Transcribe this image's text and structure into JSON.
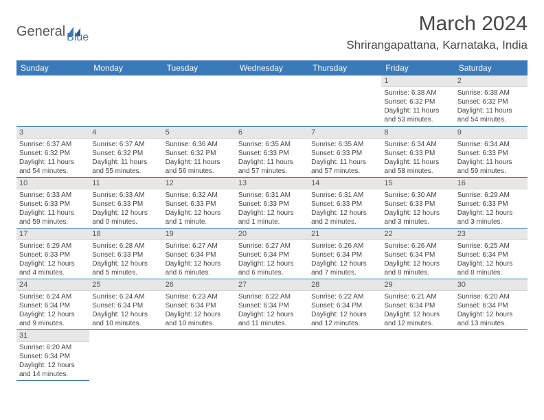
{
  "logo": {
    "text1": "General",
    "text2": "Blue"
  },
  "title": "March 2024",
  "location": "Shrirangapattana, Karnataka, India",
  "colors": {
    "header_bg": "#3a7ab8",
    "header_fg": "#ffffff",
    "daynum_bg": "#e7e7e7",
    "row_border": "#3a7ab8"
  },
  "daynames": [
    "Sunday",
    "Monday",
    "Tuesday",
    "Wednesday",
    "Thursday",
    "Friday",
    "Saturday"
  ],
  "weeks": [
    [
      null,
      null,
      null,
      null,
      null,
      {
        "n": "1",
        "sr": "Sunrise: 6:38 AM",
        "ss": "Sunset: 6:32 PM",
        "dl1": "Daylight: 11 hours",
        "dl2": "and 53 minutes."
      },
      {
        "n": "2",
        "sr": "Sunrise: 6:38 AM",
        "ss": "Sunset: 6:32 PM",
        "dl1": "Daylight: 11 hours",
        "dl2": "and 54 minutes."
      }
    ],
    [
      {
        "n": "3",
        "sr": "Sunrise: 6:37 AM",
        "ss": "Sunset: 6:32 PM",
        "dl1": "Daylight: 11 hours",
        "dl2": "and 54 minutes."
      },
      {
        "n": "4",
        "sr": "Sunrise: 6:37 AM",
        "ss": "Sunset: 6:32 PM",
        "dl1": "Daylight: 11 hours",
        "dl2": "and 55 minutes."
      },
      {
        "n": "5",
        "sr": "Sunrise: 6:36 AM",
        "ss": "Sunset: 6:32 PM",
        "dl1": "Daylight: 11 hours",
        "dl2": "and 56 minutes."
      },
      {
        "n": "6",
        "sr": "Sunrise: 6:35 AM",
        "ss": "Sunset: 6:33 PM",
        "dl1": "Daylight: 11 hours",
        "dl2": "and 57 minutes."
      },
      {
        "n": "7",
        "sr": "Sunrise: 6:35 AM",
        "ss": "Sunset: 6:33 PM",
        "dl1": "Daylight: 11 hours",
        "dl2": "and 57 minutes."
      },
      {
        "n": "8",
        "sr": "Sunrise: 6:34 AM",
        "ss": "Sunset: 6:33 PM",
        "dl1": "Daylight: 11 hours",
        "dl2": "and 58 minutes."
      },
      {
        "n": "9",
        "sr": "Sunrise: 6:34 AM",
        "ss": "Sunset: 6:33 PM",
        "dl1": "Daylight: 11 hours",
        "dl2": "and 59 minutes."
      }
    ],
    [
      {
        "n": "10",
        "sr": "Sunrise: 6:33 AM",
        "ss": "Sunset: 6:33 PM",
        "dl1": "Daylight: 11 hours",
        "dl2": "and 59 minutes."
      },
      {
        "n": "11",
        "sr": "Sunrise: 6:33 AM",
        "ss": "Sunset: 6:33 PM",
        "dl1": "Daylight: 12 hours",
        "dl2": "and 0 minutes."
      },
      {
        "n": "12",
        "sr": "Sunrise: 6:32 AM",
        "ss": "Sunset: 6:33 PM",
        "dl1": "Daylight: 12 hours",
        "dl2": "and 1 minute."
      },
      {
        "n": "13",
        "sr": "Sunrise: 6:31 AM",
        "ss": "Sunset: 6:33 PM",
        "dl1": "Daylight: 12 hours",
        "dl2": "and 1 minute."
      },
      {
        "n": "14",
        "sr": "Sunrise: 6:31 AM",
        "ss": "Sunset: 6:33 PM",
        "dl1": "Daylight: 12 hours",
        "dl2": "and 2 minutes."
      },
      {
        "n": "15",
        "sr": "Sunrise: 6:30 AM",
        "ss": "Sunset: 6:33 PM",
        "dl1": "Daylight: 12 hours",
        "dl2": "and 3 minutes."
      },
      {
        "n": "16",
        "sr": "Sunrise: 6:29 AM",
        "ss": "Sunset: 6:33 PM",
        "dl1": "Daylight: 12 hours",
        "dl2": "and 3 minutes."
      }
    ],
    [
      {
        "n": "17",
        "sr": "Sunrise: 6:29 AM",
        "ss": "Sunset: 6:33 PM",
        "dl1": "Daylight: 12 hours",
        "dl2": "and 4 minutes."
      },
      {
        "n": "18",
        "sr": "Sunrise: 6:28 AM",
        "ss": "Sunset: 6:33 PM",
        "dl1": "Daylight: 12 hours",
        "dl2": "and 5 minutes."
      },
      {
        "n": "19",
        "sr": "Sunrise: 6:27 AM",
        "ss": "Sunset: 6:34 PM",
        "dl1": "Daylight: 12 hours",
        "dl2": "and 6 minutes."
      },
      {
        "n": "20",
        "sr": "Sunrise: 6:27 AM",
        "ss": "Sunset: 6:34 PM",
        "dl1": "Daylight: 12 hours",
        "dl2": "and 6 minutes."
      },
      {
        "n": "21",
        "sr": "Sunrise: 6:26 AM",
        "ss": "Sunset: 6:34 PM",
        "dl1": "Daylight: 12 hours",
        "dl2": "and 7 minutes."
      },
      {
        "n": "22",
        "sr": "Sunrise: 6:26 AM",
        "ss": "Sunset: 6:34 PM",
        "dl1": "Daylight: 12 hours",
        "dl2": "and 8 minutes."
      },
      {
        "n": "23",
        "sr": "Sunrise: 6:25 AM",
        "ss": "Sunset: 6:34 PM",
        "dl1": "Daylight: 12 hours",
        "dl2": "and 8 minutes."
      }
    ],
    [
      {
        "n": "24",
        "sr": "Sunrise: 6:24 AM",
        "ss": "Sunset: 6:34 PM",
        "dl1": "Daylight: 12 hours",
        "dl2": "and 9 minutes."
      },
      {
        "n": "25",
        "sr": "Sunrise: 6:24 AM",
        "ss": "Sunset: 6:34 PM",
        "dl1": "Daylight: 12 hours",
        "dl2": "and 10 minutes."
      },
      {
        "n": "26",
        "sr": "Sunrise: 6:23 AM",
        "ss": "Sunset: 6:34 PM",
        "dl1": "Daylight: 12 hours",
        "dl2": "and 10 minutes."
      },
      {
        "n": "27",
        "sr": "Sunrise: 6:22 AM",
        "ss": "Sunset: 6:34 PM",
        "dl1": "Daylight: 12 hours",
        "dl2": "and 11 minutes."
      },
      {
        "n": "28",
        "sr": "Sunrise: 6:22 AM",
        "ss": "Sunset: 6:34 PM",
        "dl1": "Daylight: 12 hours",
        "dl2": "and 12 minutes."
      },
      {
        "n": "29",
        "sr": "Sunrise: 6:21 AM",
        "ss": "Sunset: 6:34 PM",
        "dl1": "Daylight: 12 hours",
        "dl2": "and 12 minutes."
      },
      {
        "n": "30",
        "sr": "Sunrise: 6:20 AM",
        "ss": "Sunset: 6:34 PM",
        "dl1": "Daylight: 12 hours",
        "dl2": "and 13 minutes."
      }
    ],
    [
      {
        "n": "31",
        "sr": "Sunrise: 6:20 AM",
        "ss": "Sunset: 6:34 PM",
        "dl1": "Daylight: 12 hours",
        "dl2": "and 14 minutes."
      },
      null,
      null,
      null,
      null,
      null,
      null
    ]
  ]
}
